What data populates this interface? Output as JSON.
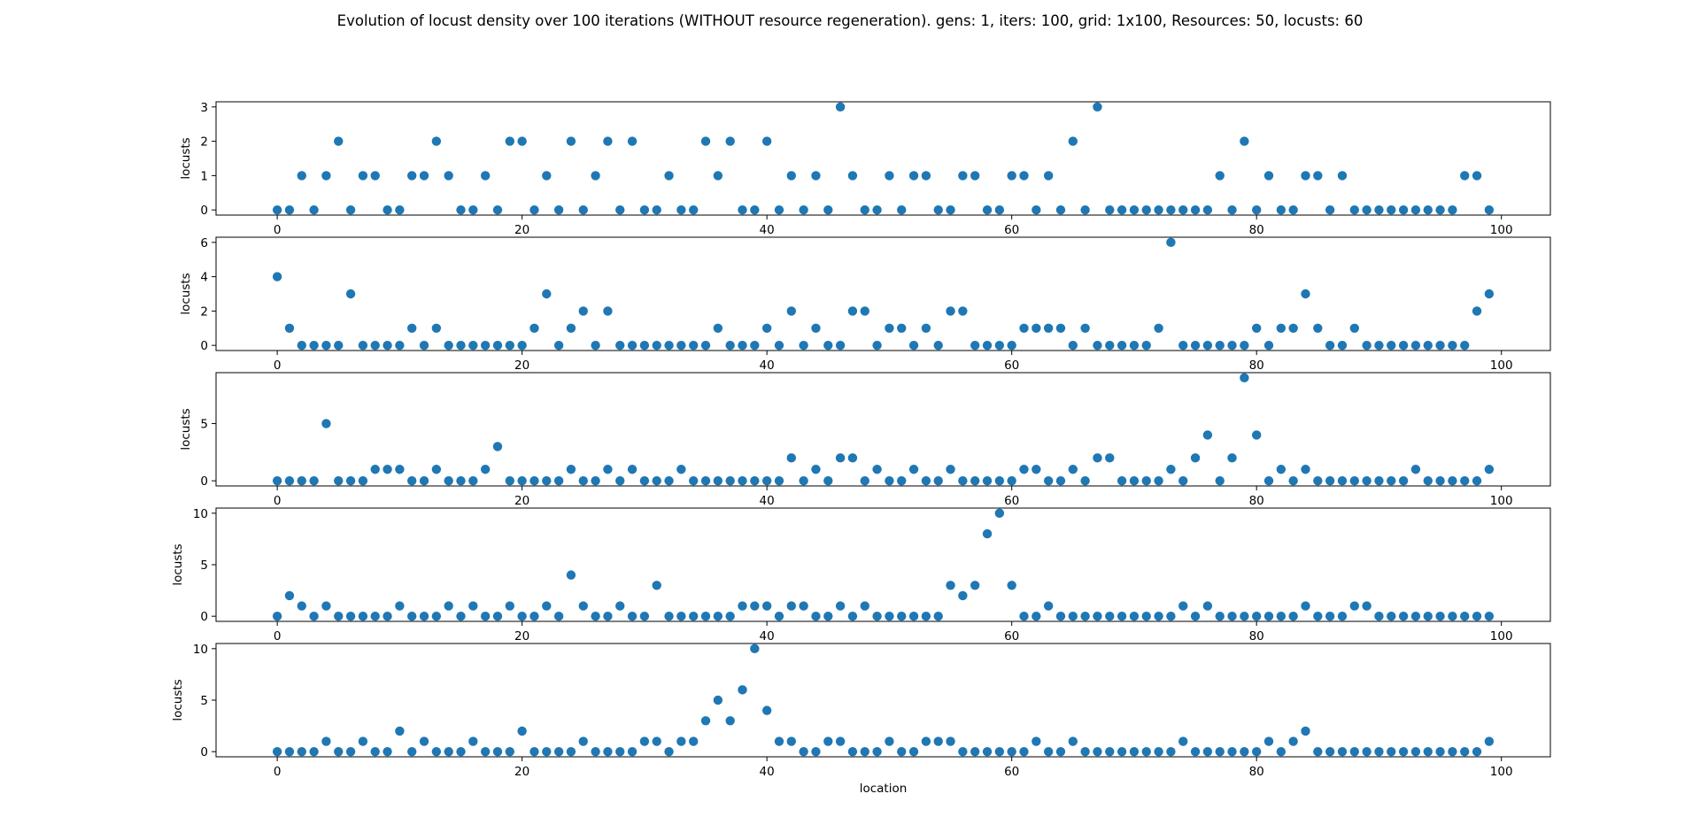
{
  "figure": {
    "title": "Evolution of locust density over 100 iterations (WITHOUT resource regeneration). gens: 1, iters: 100, grid: 1x100, Resources: 50, locusts: 60"
  },
  "colors": {
    "marker": "#1f77b4",
    "axes": "#000000"
  },
  "chart_data": [
    {
      "type": "scatter",
      "xlabel": "",
      "ylabel": "locusts",
      "xlim": [
        -5,
        104
      ],
      "ylim": [
        -0.15,
        3.15
      ],
      "xticks": [
        0,
        20,
        40,
        60,
        80,
        100
      ],
      "yticks": [
        0,
        1,
        2,
        3
      ],
      "x_start": 0,
      "values": [
        0,
        0,
        1,
        0,
        1,
        2,
        0,
        1,
        1,
        0,
        0,
        1,
        1,
        2,
        1,
        0,
        0,
        1,
        0,
        2,
        2,
        0,
        1,
        0,
        2,
        0,
        1,
        2,
        0,
        2,
        0,
        0,
        1,
        0,
        0,
        2,
        1,
        2,
        0,
        0,
        2,
        0,
        1,
        0,
        1,
        0,
        3,
        1,
        0,
        0,
        1,
        0,
        1,
        1,
        0,
        0,
        1,
        1,
        0,
        0,
        1,
        1,
        0,
        1,
        0,
        2,
        0,
        3,
        0,
        0,
        0,
        0,
        0,
        0,
        0,
        0,
        0,
        1,
        0,
        2,
        0,
        1,
        0,
        0,
        1,
        1,
        0,
        1,
        0,
        0,
        0,
        0,
        0,
        0,
        0,
        0,
        0,
        1,
        1,
        0
      ]
    },
    {
      "type": "scatter",
      "xlabel": "",
      "ylabel": "locusts",
      "xlim": [
        -5,
        104
      ],
      "ylim": [
        -0.3,
        6.3
      ],
      "xticks": [
        0,
        20,
        40,
        60,
        80,
        100
      ],
      "yticks": [
        0,
        2,
        4,
        6
      ],
      "x_start": 0,
      "values": [
        4,
        1,
        0,
        0,
        0,
        0,
        3,
        0,
        0,
        0,
        0,
        1,
        0,
        1,
        0,
        0,
        0,
        0,
        0,
        0,
        0,
        1,
        3,
        0,
        1,
        2,
        0,
        2,
        0,
        0,
        0,
        0,
        0,
        0,
        0,
        0,
        1,
        0,
        0,
        0,
        1,
        0,
        2,
        0,
        1,
        0,
        0,
        2,
        2,
        0,
        1,
        1,
        0,
        1,
        0,
        2,
        2,
        0,
        0,
        0,
        0,
        1,
        1,
        1,
        1,
        0,
        1,
        0,
        0,
        0,
        0,
        0,
        1,
        6,
        0,
        0,
        0,
        0,
        0,
        0,
        1,
        0,
        1,
        1,
        3,
        1,
        0,
        0,
        1,
        0,
        0,
        0,
        0,
        0,
        0,
        0,
        0,
        0,
        2,
        3
      ]
    },
    {
      "type": "scatter",
      "xlabel": "",
      "ylabel": "locusts",
      "xlim": [
        -5,
        104
      ],
      "ylim": [
        -0.45,
        9.45
      ],
      "xticks": [
        0,
        20,
        40,
        60,
        80,
        100
      ],
      "yticks": [
        0,
        5
      ],
      "x_start": 0,
      "values": [
        0,
        0,
        0,
        0,
        5,
        0,
        0,
        0,
        1,
        1,
        1,
        0,
        0,
        1,
        0,
        0,
        0,
        1,
        3,
        0,
        0,
        0,
        0,
        0,
        1,
        0,
        0,
        1,
        0,
        1,
        0,
        0,
        0,
        1,
        0,
        0,
        0,
        0,
        0,
        0,
        0,
        0,
        2,
        0,
        1,
        0,
        2,
        2,
        0,
        1,
        0,
        0,
        1,
        0,
        0,
        1,
        0,
        0,
        0,
        0,
        0,
        1,
        1,
        0,
        0,
        1,
        0,
        2,
        2,
        0,
        0,
        0,
        0,
        1,
        0,
        2,
        4,
        0,
        2,
        9,
        4,
        0,
        1,
        0,
        1,
        0,
        0,
        0,
        0,
        0,
        0,
        0,
        0,
        1,
        0,
        0,
        0,
        0,
        0,
        1
      ]
    },
    {
      "type": "scatter",
      "xlabel": "",
      "ylabel": "locusts",
      "xlim": [
        -5,
        104
      ],
      "ylim": [
        -0.5,
        10.5
      ],
      "xticks": [
        0,
        20,
        40,
        60,
        80,
        100
      ],
      "yticks": [
        0,
        5,
        10
      ],
      "x_start": 0,
      "values": [
        0,
        2,
        1,
        0,
        1,
        0,
        0,
        0,
        0,
        0,
        1,
        0,
        0,
        0,
        1,
        0,
        1,
        0,
        0,
        1,
        0,
        0,
        1,
        0,
        4,
        1,
        0,
        0,
        1,
        0,
        0,
        3,
        0,
        0,
        0,
        0,
        0,
        0,
        1,
        1,
        1,
        0,
        1,
        1,
        0,
        0,
        1,
        0,
        1,
        0,
        0,
        0,
        0,
        0,
        0,
        3,
        2,
        3,
        8,
        10,
        3,
        0,
        0,
        1,
        0,
        0,
        0,
        0,
        0,
        0,
        0,
        0,
        0,
        0,
        1,
        0,
        1,
        0,
        0,
        0,
        0,
        0,
        0,
        0,
        1,
        0,
        0,
        0,
        1,
        1,
        0,
        0,
        0,
        0,
        0,
        0,
        0,
        0,
        0,
        0
      ]
    },
    {
      "type": "scatter",
      "xlabel": "location",
      "ylabel": "locusts",
      "xlim": [
        -5,
        104
      ],
      "ylim": [
        -0.5,
        10.5
      ],
      "xticks": [
        0,
        20,
        40,
        60,
        80,
        100
      ],
      "yticks": [
        0,
        5,
        10
      ],
      "x_start": 0,
      "values": [
        0,
        0,
        0,
        0,
        1,
        0,
        0,
        1,
        0,
        0,
        2,
        0,
        1,
        0,
        0,
        0,
        1,
        0,
        0,
        0,
        2,
        0,
        0,
        0,
        0,
        1,
        0,
        0,
        0,
        0,
        1,
        1,
        0,
        1,
        1,
        3,
        5,
        3,
        6,
        10,
        4,
        1,
        1,
        0,
        0,
        1,
        1,
        0,
        0,
        0,
        1,
        0,
        0,
        1,
        1,
        1,
        0,
        0,
        0,
        0,
        0,
        0,
        1,
        0,
        0,
        1,
        0,
        0,
        0,
        0,
        0,
        0,
        0,
        0,
        1,
        0,
        0,
        0,
        0,
        0,
        0,
        1,
        0,
        1,
        2,
        0,
        0,
        0,
        0,
        0,
        0,
        0,
        0,
        0,
        0,
        0,
        0,
        0,
        0,
        1
      ]
    }
  ]
}
